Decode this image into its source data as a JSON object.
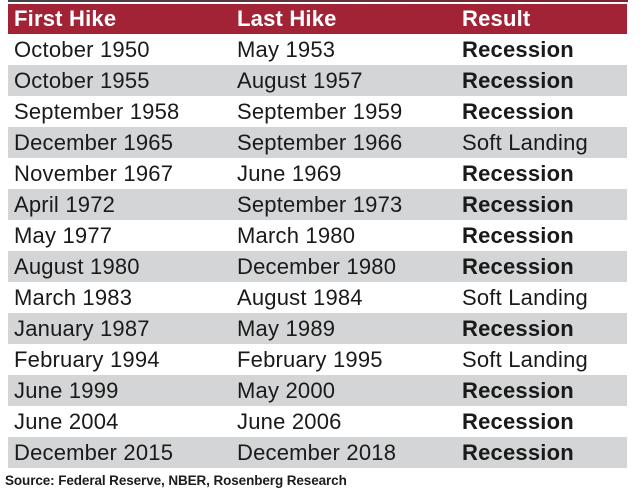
{
  "colors": {
    "header_bg": "#a32336",
    "stripe_bg": "#d4d5d6",
    "row_bg": "#ffffff",
    "header_text": "#ffffff",
    "body_text": "#1a1a1a"
  },
  "chart_data": {
    "type": "table",
    "columns": [
      "First Hike",
      "Last Hike",
      "Result"
    ],
    "rows": [
      [
        "October 1950",
        "May 1953",
        "Recession"
      ],
      [
        "October 1955",
        "August 1957",
        "Recession"
      ],
      [
        "September 1958",
        "September 1959",
        "Recession"
      ],
      [
        "December 1965",
        "September 1966",
        "Soft Landing"
      ],
      [
        "November 1967",
        "June 1969",
        "Recession"
      ],
      [
        "April 1972",
        "September 1973",
        "Recession"
      ],
      [
        "May 1977",
        "March 1980",
        "Recession"
      ],
      [
        "August 1980",
        "December 1980",
        "Recession"
      ],
      [
        "March 1983",
        "August 1984",
        "Soft Landing"
      ],
      [
        "January 1987",
        "May 1989",
        "Recession"
      ],
      [
        "February 1994",
        "February 1995",
        "Soft Landing"
      ],
      [
        "June 1999",
        "May 2000",
        "Recession"
      ],
      [
        "June 2004",
        "June 2006",
        "Recession"
      ],
      [
        "December 2015",
        "December 2018",
        "Recession"
      ]
    ],
    "emphasized_result": "Recession",
    "layout": {
      "stripe_pattern": "even rows shaded gray",
      "legend_position": "none",
      "grid": false
    }
  },
  "footer": {
    "source": "Source: Federal Reserve, NBER, Rosenberg Research"
  }
}
